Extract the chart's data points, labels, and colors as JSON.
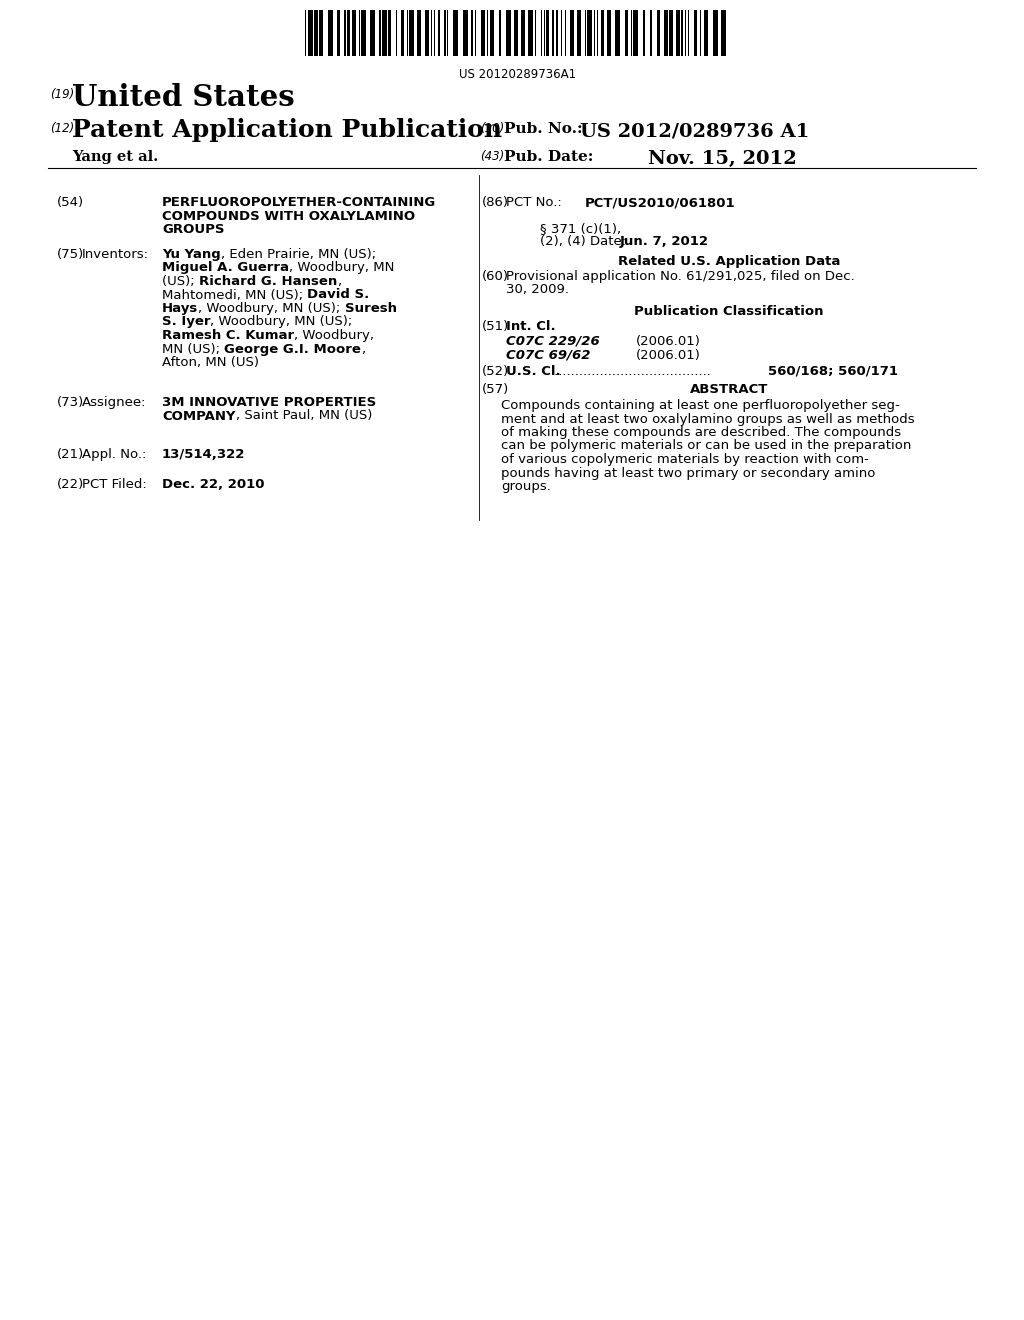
{
  "bg_color": "#ffffff",
  "barcode_text": "US 20120289736A1",
  "united_states": "United States",
  "patent_app": "Patent Application Publication",
  "pub_no_label": "Pub. No.:",
  "pub_no_value": "US 2012/0289736 A1",
  "yang_et_al": "Yang et al.",
  "pub_date_label": "Pub. Date:",
  "pub_date_value": "Nov. 15, 2012",
  "title_line1": "PERFLUOROPOLYETHER-CONTAINING",
  "title_line2": "COMPOUNDS WITH OXALYLAMINO",
  "title_line3": "GROUPS",
  "pct_no_label": "PCT No.:",
  "pct_no_value": "PCT/US2010/061801",
  "sec371_line1": "§ 371 (c)(1),",
  "sec371_line2": "(2), (4) Date:",
  "sec371_date": "Jun. 7, 2012",
  "related_data_header": "Related U.S. Application Data",
  "prov_app_line1": "Provisional application No. 61/291,025, filed on Dec.",
  "prov_app_line2": "30, 2009.",
  "pub_class_header": "Publication Classification",
  "int_cl_label": "Int. Cl.",
  "int_cl_1_code": "C07C 229/26",
  "int_cl_1_year": "(2006.01)",
  "int_cl_2_code": "C07C 69/62",
  "int_cl_2_year": "(2006.01)",
  "us_cl_label": "U.S. Cl.",
  "us_cl_dots": ".......................................",
  "us_cl_value": "560/168; 560/171",
  "abstract_header": "ABSTRACT",
  "abstract_line1": "Compounds containing at least one perfluoropolyether seg-",
  "abstract_line2": "ment and at least two oxalylamino groups as well as methods",
  "abstract_line3": "of making these compounds are described. The compounds",
  "abstract_line4": "can be polymeric materials or can be used in the preparation",
  "abstract_line5": "of various copolymeric materials by reaction with com-",
  "abstract_line6": "pounds having at least two primary or secondary amino",
  "abstract_line7": "groups.",
  "assignee_name": "3M INNOVATIVE PROPERTIES",
  "assignee_rest": "COMPANY",
  "assignee_loc": ", Saint Paul, MN (US)",
  "appl_no_value": "13/514,322",
  "pct_filed_value": "Dec. 22, 2010",
  "inv_lines": [
    [
      [
        "Yu Yang",
        true
      ],
      [
        ", Eden Prairie, MN (US);",
        false
      ]
    ],
    [
      [
        "Miguel A. Guerra",
        true
      ],
      [
        ", Woodbury, MN",
        false
      ]
    ],
    [
      [
        "(US); ",
        false
      ],
      [
        "Richard G. Hansen",
        true
      ],
      [
        ",",
        false
      ]
    ],
    [
      [
        "Mahtomedi, MN (US); ",
        false
      ],
      [
        "David S.",
        true
      ]
    ],
    [
      [
        "Hays",
        true
      ],
      [
        ", Woodbury, MN (US); ",
        false
      ],
      [
        "Suresh",
        true
      ]
    ],
    [
      [
        "S. Iyer",
        true
      ],
      [
        ", Woodbury, MN (US);",
        false
      ]
    ],
    [
      [
        "Ramesh C. Kumar",
        true
      ],
      [
        ", Woodbury,",
        false
      ]
    ],
    [
      [
        "MN (US); ",
        false
      ],
      [
        "George G.I. Moore",
        true
      ],
      [
        ",",
        false
      ]
    ],
    [
      [
        "Afton, MN (US)",
        false
      ]
    ]
  ]
}
